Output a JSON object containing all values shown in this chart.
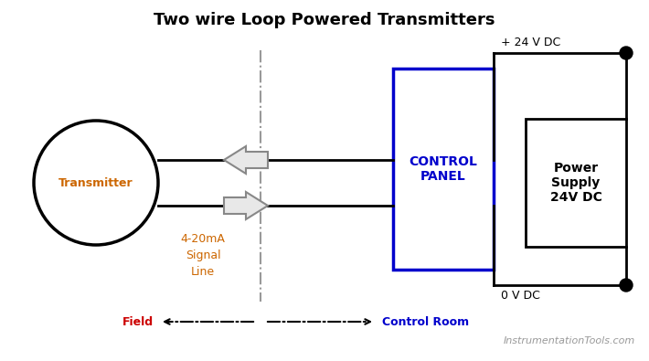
{
  "title": "Two wire Loop Powered Transmitters",
  "title_fontsize": 13,
  "bg_color": "#ffffff",
  "transmitter_label": "Transmitter",
  "transmitter_label_color": "#cc6600",
  "control_panel_label": "CONTROL\nPANEL",
  "control_panel_color": "#0000cc",
  "power_supply_label": "Power\nSupply\n24V DC",
  "wire_color": "#000000",
  "arrow_fill_color": "#e8e8e8",
  "arrow_edge_color": "#888888",
  "signal_label": "4-20mA\nSignal\nLine",
  "signal_label_color": "#cc6600",
  "plus24_label": "+ 24 V DC",
  "zero_label": "0 V DC",
  "field_label": "Field",
  "control_room_label": "Control Room",
  "field_label_color": "#cc0000",
  "control_room_color": "#0000cc",
  "watermark": "InstrumentationTools.com",
  "watermark_color": "#999999",
  "dashed_line_color": "#999999"
}
